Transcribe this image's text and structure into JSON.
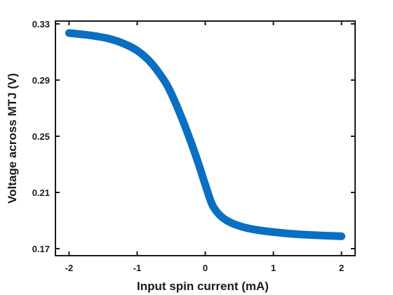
{
  "chart_data": {
    "type": "line",
    "title": "",
    "xlabel": "Input spin current (mA)",
    "ylabel": "Voltage across MTJ (V)",
    "xlim": [
      -2.2,
      2.2
    ],
    "ylim": [
      0.165,
      0.332
    ],
    "xticks": [
      -2,
      -1,
      0,
      1,
      2
    ],
    "xtick_labels": [
      "-2",
      "-1",
      "0",
      "1",
      "2"
    ],
    "yticks": [
      0.17,
      0.21,
      0.25,
      0.29,
      0.33
    ],
    "ytick_labels": [
      "0.17",
      "0.21",
      "0.25",
      "0.29",
      "0.33"
    ],
    "grid": false,
    "legend": "none",
    "series": [
      {
        "color": "#0a6fc2",
        "x": [
          -2.0,
          -1.8,
          -1.6,
          -1.4,
          -1.2,
          -1.0,
          -0.8,
          -0.6,
          -0.5,
          -0.4,
          -0.3,
          -0.2,
          -0.1,
          0.0,
          0.1,
          0.2,
          0.3,
          0.4,
          0.5,
          0.6,
          0.7,
          0.8,
          1.0,
          1.2,
          1.4,
          1.6,
          1.8,
          2.0
        ],
        "values": [
          0.3235,
          0.3225,
          0.3212,
          0.3193,
          0.316,
          0.311,
          0.3025,
          0.2895,
          0.2805,
          0.2695,
          0.2575,
          0.2445,
          0.2305,
          0.2155,
          0.2015,
          0.1945,
          0.1905,
          0.188,
          0.1862,
          0.1848,
          0.1838,
          0.183,
          0.1818,
          0.1808,
          0.1801,
          0.1796,
          0.1792,
          0.1788
        ]
      }
    ]
  }
}
